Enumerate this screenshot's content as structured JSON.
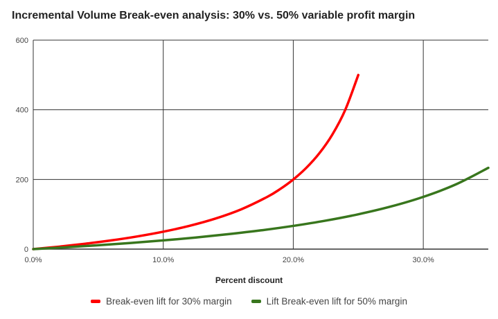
{
  "chart_data": {
    "type": "line",
    "title": "Incremental Volume Break-even analysis:  30% vs. 50% variable profit margin",
    "xlabel": "Percent discount",
    "ylabel": "",
    "xlim": [
      0,
      35
    ],
    "ylim": [
      0,
      600
    ],
    "x_ticks": [
      {
        "value": 0,
        "label": "0.0%"
      },
      {
        "value": 10,
        "label": "10.0%"
      },
      {
        "value": 20,
        "label": "20.0%"
      },
      {
        "value": 30,
        "label": "30.0%"
      }
    ],
    "y_ticks": [
      {
        "value": 0,
        "label": "0"
      },
      {
        "value": 200,
        "label": "200"
      },
      {
        "value": 400,
        "label": "400"
      },
      {
        "value": 600,
        "label": "600"
      }
    ],
    "grid": true,
    "legend_position": "bottom",
    "series": [
      {
        "name": "Break-even lift for 30% margin",
        "color": "#ff0000",
        "x": [
          0,
          2,
          4,
          6,
          8,
          10,
          12,
          14,
          16,
          18,
          19,
          20,
          21,
          22,
          23,
          24,
          25
        ],
        "y": [
          0,
          7.1,
          15.4,
          25,
          36.4,
          50,
          66.7,
          87.5,
          114.3,
          150,
          172.7,
          200,
          233.3,
          275,
          328.6,
          400,
          500
        ]
      },
      {
        "name": "Lift Break-even lift for 50% margin",
        "color": "#38761d",
        "x": [
          0,
          2.5,
          5,
          7.5,
          10,
          12.5,
          15,
          17.5,
          20,
          22.5,
          25,
          27.5,
          30,
          32.5,
          35
        ],
        "y": [
          0,
          5.3,
          11.1,
          17.6,
          25,
          33.3,
          42.9,
          53.8,
          66.7,
          81.8,
          100,
          122.2,
          150,
          185.7,
          233.3
        ]
      }
    ]
  }
}
